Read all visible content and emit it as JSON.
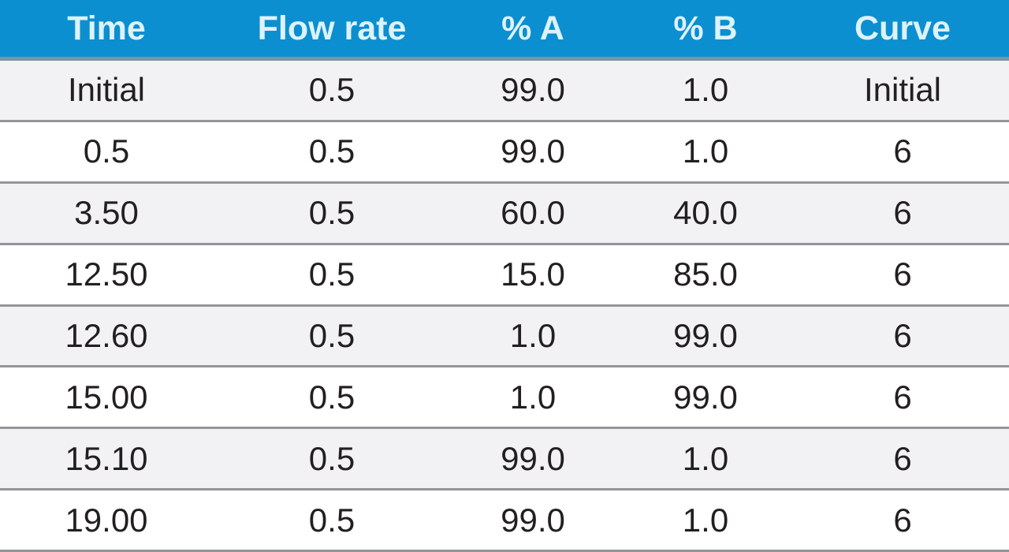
{
  "table": {
    "headers": [
      "Time",
      "Flow rate",
      "% A",
      "% B",
      "Curve"
    ],
    "rows": [
      [
        "Initial",
        "0.5",
        "99.0",
        "1.0",
        "Initial"
      ],
      [
        "0.5",
        "0.5",
        "99.0",
        "1.0",
        "6"
      ],
      [
        "3.50",
        "0.5",
        "60.0",
        "40.0",
        "6"
      ],
      [
        "12.50",
        "0.5",
        "15.0",
        "85.0",
        "6"
      ],
      [
        "12.60",
        "0.5",
        "1.0",
        "99.0",
        "6"
      ],
      [
        "15.00",
        "0.5",
        "1.0",
        "99.0",
        "6"
      ],
      [
        "15.10",
        "0.5",
        "99.0",
        "1.0",
        "6"
      ],
      [
        "19.00",
        "0.5",
        "99.0",
        "1.0",
        "6"
      ]
    ]
  },
  "chart_data": {
    "type": "table",
    "columns": [
      "Time",
      "Flow rate",
      "% A",
      "% B",
      "Curve"
    ],
    "rows": [
      [
        "Initial",
        0.5,
        99.0,
        1.0,
        "Initial"
      ],
      [
        0.5,
        0.5,
        99.0,
        1.0,
        6
      ],
      [
        3.5,
        0.5,
        60.0,
        40.0,
        6
      ],
      [
        12.5,
        0.5,
        15.0,
        85.0,
        6
      ],
      [
        12.6,
        0.5,
        1.0,
        99.0,
        6
      ],
      [
        15.0,
        0.5,
        1.0,
        99.0,
        6
      ],
      [
        15.1,
        0.5,
        99.0,
        1.0,
        6
      ],
      [
        19.0,
        0.5,
        99.0,
        1.0,
        6
      ]
    ]
  },
  "colors": {
    "header_bg": "#0b8fd0",
    "header_text": "#ddf2fc",
    "row_alt_bg": "#f2f2f4",
    "row_bg": "#ffffff",
    "separator": "#939598",
    "header_rule": "#7f93a2",
    "text": "#231f20"
  }
}
